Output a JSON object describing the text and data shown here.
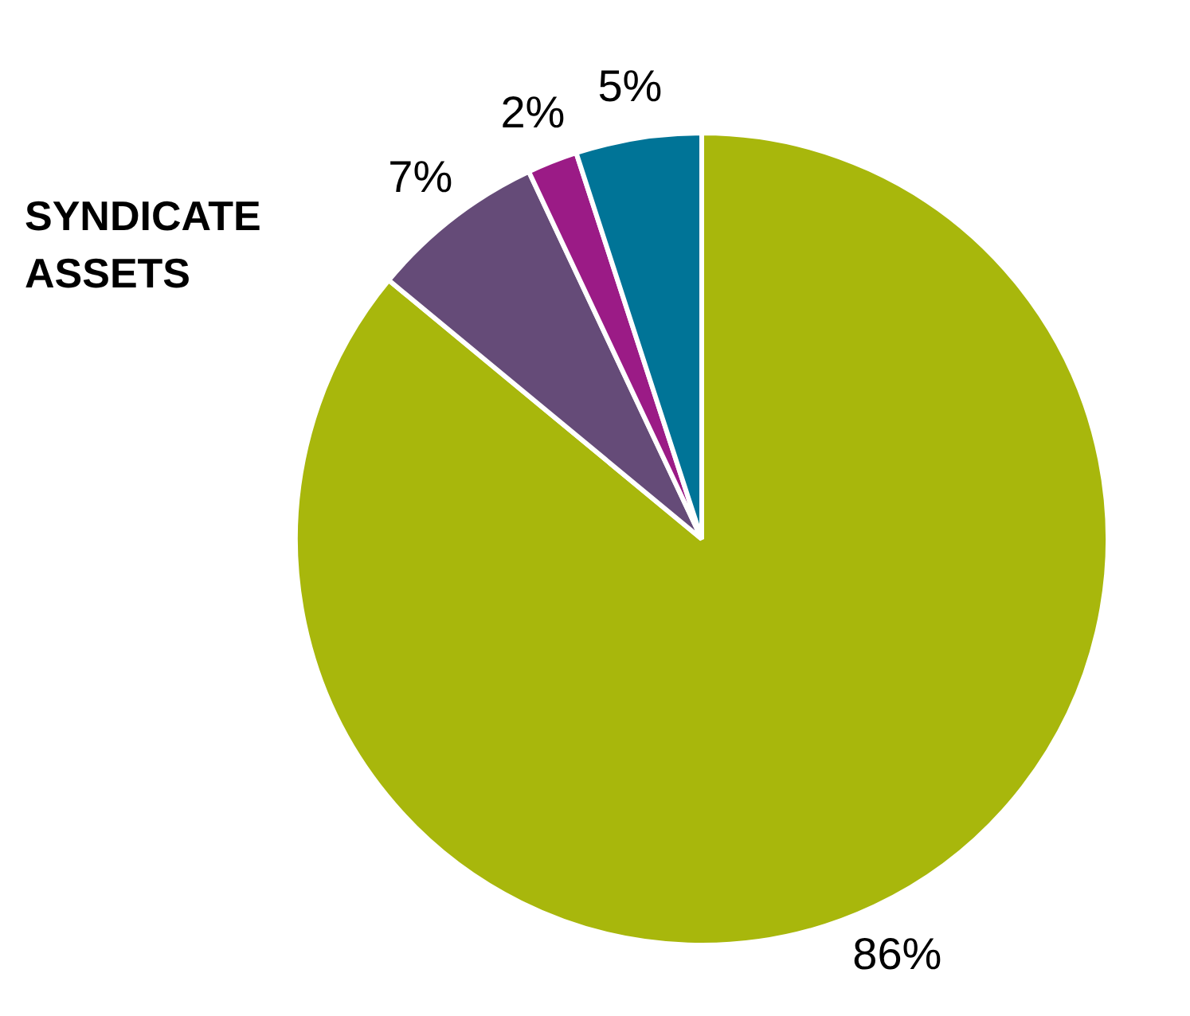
{
  "chart_data": {
    "type": "pie",
    "title": "SYNDICATE\nASSETS",
    "categories": [
      null,
      null,
      null,
      null
    ],
    "values": [
      86,
      7,
      2,
      5
    ],
    "colors": [
      "#a8b70c",
      "#654b78",
      "#9b1b86",
      "#007497"
    ],
    "value_labels": [
      "86%",
      "7%",
      "2%",
      "5%"
    ]
  }
}
